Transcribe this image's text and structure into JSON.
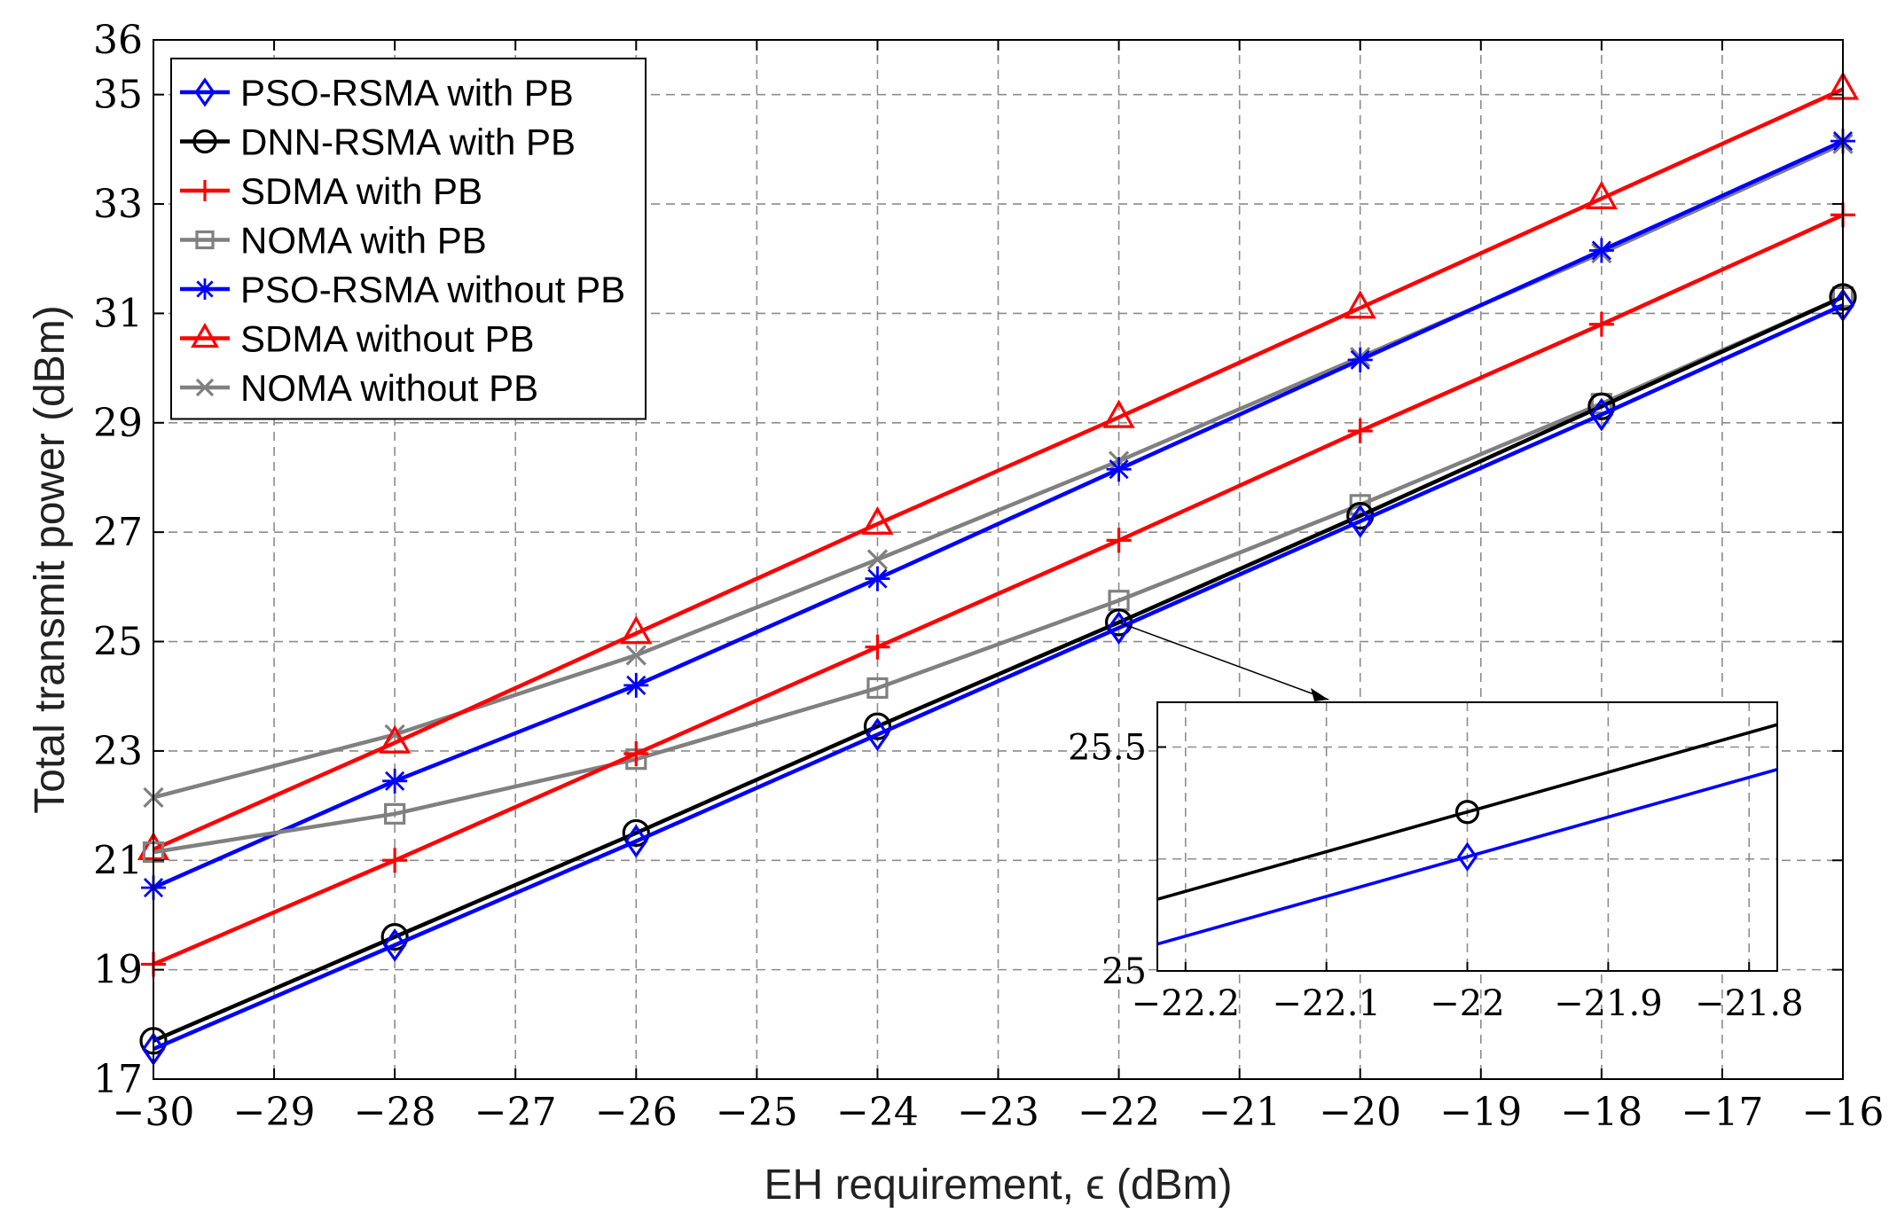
{
  "chart_data": {
    "type": "line",
    "xlabel": "EH requirement, ϵ (dBm)",
    "ylabel": "Total transmit power (dBm)",
    "xlim": [
      -30,
      -16
    ],
    "ylim": [
      17,
      36
    ],
    "xticks": [
      -30,
      -29,
      -28,
      -27,
      -26,
      -25,
      -24,
      -23,
      -22,
      -21,
      -20,
      -19,
      -18,
      -17,
      -16
    ],
    "yticks": [
      17,
      19,
      21,
      23,
      25,
      27,
      29,
      31,
      33,
      35,
      36
    ],
    "grid": true,
    "legend_position": "top-left",
    "x": [
      -30,
      -28,
      -26,
      -24,
      -22,
      -20,
      -18,
      -16
    ],
    "series": [
      {
        "name": "PSO-RSMA with PB",
        "color": "#0000ff",
        "marker": "diamond",
        "values": [
          17.55,
          19.45,
          21.35,
          23.3,
          25.25,
          27.2,
          29.15,
          31.15
        ]
      },
      {
        "name": "DNN-RSMA with PB",
        "color": "#000000",
        "marker": "circle",
        "values": [
          17.7,
          19.6,
          21.5,
          23.45,
          25.35,
          27.3,
          29.3,
          31.3
        ]
      },
      {
        "name": "SDMA with PB",
        "color": "#ff0000",
        "marker": "plus",
        "values": [
          19.1,
          21.0,
          22.95,
          24.9,
          26.85,
          28.85,
          30.8,
          32.8
        ]
      },
      {
        "name": "NOMA with PB",
        "color": "#808080",
        "marker": "square",
        "values": [
          21.15,
          21.85,
          22.85,
          24.15,
          25.75,
          27.5,
          29.35,
          31.3
        ]
      },
      {
        "name": "PSO-RSMA without PB",
        "color": "#0000ff",
        "marker": "asterisk",
        "values": [
          20.5,
          22.45,
          24.2,
          26.15,
          28.15,
          30.15,
          32.15,
          34.15
        ]
      },
      {
        "name": "SDMA without PB",
        "color": "#ff0000",
        "marker": "triangle",
        "values": [
          21.2,
          23.15,
          25.15,
          27.15,
          29.1,
          31.1,
          33.1,
          35.1
        ]
      },
      {
        "name": "NOMA without PB",
        "color": "#808080",
        "marker": "x",
        "values": [
          22.15,
          23.3,
          24.75,
          26.5,
          28.3,
          30.2,
          32.1,
          34.1
        ]
      }
    ],
    "inset": {
      "xlim": [
        -22.22,
        -21.78
      ],
      "ylim": [
        25,
        25.6
      ],
      "xticks": [
        -22.2,
        -22.1,
        -22,
        -21.9,
        -21.8
      ],
      "yticks": [
        25,
        25.5
      ],
      "xtick_labels": [
        "−22.2",
        "−22.1",
        "−22",
        "−21.9",
        "−21.8"
      ],
      "ytick_labels": [
        "25",
        "25.5"
      ],
      "zoom_point": [
        -22,
        25.35
      ],
      "series": [
        {
          "name": "DNN-RSMA with PB",
          "color": "#000000",
          "marker": "circle",
          "x": [
            -22.22,
            -22,
            -21.78
          ],
          "values": [
            25.16,
            25.355,
            25.55
          ],
          "marker_x": -22,
          "marker_y": 25.355
        },
        {
          "name": "PSO-RSMA with PB",
          "color": "#0000ff",
          "marker": "diamond",
          "x": [
            -22.22,
            -22,
            -21.78
          ],
          "values": [
            25.06,
            25.255,
            25.45
          ],
          "marker_x": -22,
          "marker_y": 25.255
        }
      ]
    }
  }
}
